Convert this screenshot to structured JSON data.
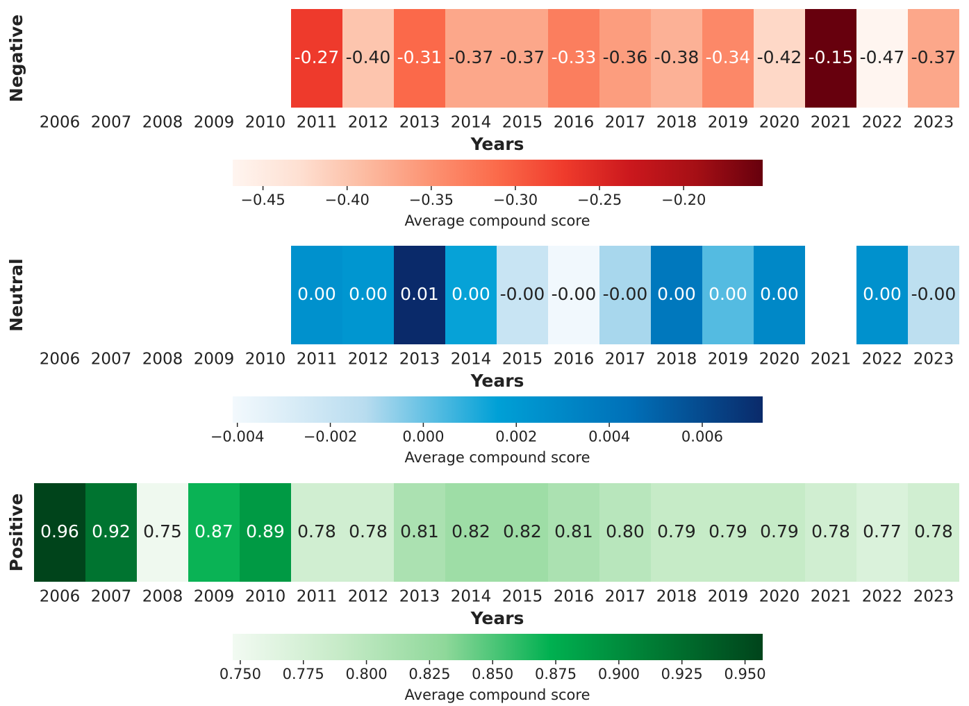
{
  "chart_data": [
    {
      "type": "heatmap",
      "ylabel": "Negative",
      "xlabel": "Years",
      "categories": [
        "2006",
        "2007",
        "2008",
        "2009",
        "2010",
        "2011",
        "2012",
        "2013",
        "2014",
        "2015",
        "2016",
        "2017",
        "2018",
        "2019",
        "2020",
        "2021",
        "2022",
        "2023"
      ],
      "values": [
        null,
        null,
        null,
        null,
        null,
        -0.27,
        -0.4,
        -0.31,
        -0.37,
        -0.37,
        -0.33,
        -0.36,
        -0.38,
        -0.34,
        -0.42,
        -0.15,
        -0.47,
        -0.37
      ],
      "value_labels": [
        null,
        null,
        null,
        null,
        null,
        "-0.27",
        "-0.40",
        "-0.31",
        "-0.37",
        "-0.37",
        "-0.33",
        "-0.36",
        "-0.38",
        "-0.34",
        "-0.42",
        "-0.15",
        "-0.47",
        "-0.37"
      ],
      "colormap": [
        "#fff5f0",
        "#fee0d2",
        "#fcbba1",
        "#fc9272",
        "#fb6a4a",
        "#ef3b2c",
        "#cb181d",
        "#a50f15",
        "#67000d"
      ],
      "clim": [
        -0.468,
        -0.153
      ],
      "cticks": [
        {
          "value": -0.45,
          "label": "−0.45"
        },
        {
          "value": -0.4,
          "label": "−0.40"
        },
        {
          "value": -0.35,
          "label": "−0.35"
        },
        {
          "value": -0.3,
          "label": "−0.30"
        },
        {
          "value": -0.25,
          "label": "−0.25"
        },
        {
          "value": -0.2,
          "label": "−0.20"
        }
      ],
      "colorbar_label": "Average compound score"
    },
    {
      "type": "heatmap",
      "ylabel": "Neutral",
      "xlabel": "Years",
      "categories": [
        "2006",
        "2007",
        "2008",
        "2009",
        "2010",
        "2011",
        "2012",
        "2013",
        "2014",
        "2015",
        "2016",
        "2017",
        "2018",
        "2019",
        "2020",
        "2021",
        "2022",
        "2023"
      ],
      "values": [
        null,
        null,
        null,
        null,
        null,
        0.0025,
        0.0022,
        0.0073,
        0.0015,
        -0.002,
        -0.004,
        -0.001,
        0.004,
        0.0003,
        0.003,
        null,
        0.0025,
        -0.0015
      ],
      "value_labels": [
        null,
        null,
        null,
        null,
        null,
        "0.00",
        "0.00",
        "0.01",
        "0.00",
        "-0.00",
        "-0.00",
        "-0.00",
        "0.00",
        "0.00",
        "0.00",
        null,
        "0.00",
        "-0.00"
      ],
      "colormap": [
        "#f3f9fd",
        "#b8dcef",
        "#00a0d6",
        "#0070b8",
        "#0a2a6a"
      ],
      "clim": [
        -0.0041,
        0.0073
      ],
      "cticks": [
        {
          "value": -0.004,
          "label": "−0.004"
        },
        {
          "value": -0.002,
          "label": "−0.002"
        },
        {
          "value": 0,
          "label": "0.000"
        },
        {
          "value": 0.002,
          "label": "0.002"
        },
        {
          "value": 0.004,
          "label": "0.004"
        },
        {
          "value": 0.006,
          "label": "0.006"
        }
      ],
      "colorbar_label": "Average compound score"
    },
    {
      "type": "heatmap",
      "ylabel": "Positive",
      "xlabel": "Years",
      "categories": [
        "2006",
        "2007",
        "2008",
        "2009",
        "2010",
        "2011",
        "2012",
        "2013",
        "2014",
        "2015",
        "2016",
        "2017",
        "2018",
        "2019",
        "2020",
        "2021",
        "2022",
        "2023"
      ],
      "values": [
        0.96,
        0.92,
        0.75,
        0.87,
        0.89,
        0.78,
        0.78,
        0.81,
        0.82,
        0.82,
        0.81,
        0.8,
        0.79,
        0.79,
        0.79,
        0.78,
        0.77,
        0.78
      ],
      "value_labels": [
        "0.96",
        "0.92",
        "0.75",
        "0.87",
        "0.89",
        "0.78",
        "0.78",
        "0.81",
        "0.82",
        "0.82",
        "0.81",
        "0.80",
        "0.79",
        "0.79",
        "0.79",
        "0.78",
        "0.77",
        "0.78"
      ],
      "colormap": [
        "#f2faf2",
        "#c7ebc8",
        "#8fd89a",
        "#00b050",
        "#007a33",
        "#00441b"
      ],
      "clim": [
        0.747,
        0.957
      ],
      "cticks": [
        {
          "value": 0.75,
          "label": "0.750"
        },
        {
          "value": 0.775,
          "label": "0.775"
        },
        {
          "value": 0.8,
          "label": "0.800"
        },
        {
          "value": 0.825,
          "label": "0.825"
        },
        {
          "value": 0.85,
          "label": "0.850"
        },
        {
          "value": 0.875,
          "label": "0.875"
        },
        {
          "value": 0.9,
          "label": "0.900"
        },
        {
          "value": 0.925,
          "label": "0.925"
        },
        {
          "value": 0.95,
          "label": "0.950"
        }
      ],
      "colorbar_label": "Average compound score"
    }
  ]
}
